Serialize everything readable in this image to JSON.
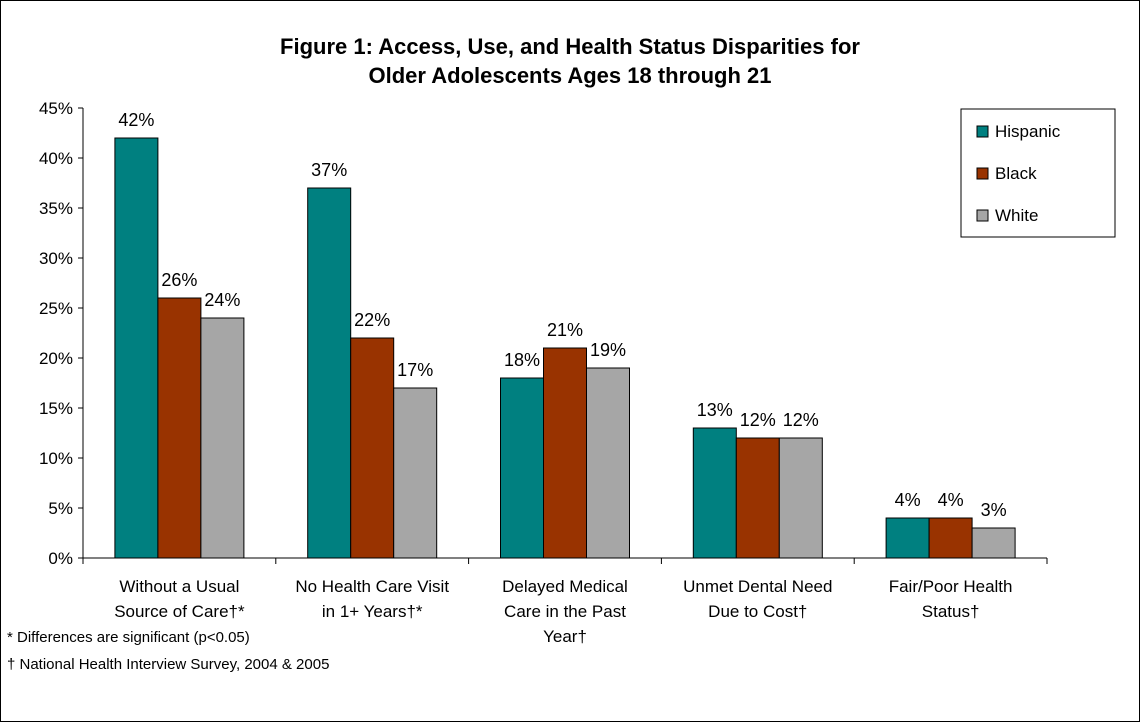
{
  "chart_data": {
    "type": "bar",
    "title_lines": [
      "Figure 1: Access, Use, and Health Status Disparities for",
      "Older Adolescents Ages 18 through 21"
    ],
    "categories": [
      [
        "Without a Usual",
        "Source of Care†*"
      ],
      [
        "No Health Care Visit",
        "in 1+ Years†*"
      ],
      [
        "Delayed Medical",
        "Care in the Past",
        "Year†"
      ],
      [
        "Unmet Dental Need",
        "Due to Cost†"
      ],
      [
        "Fair/Poor Health",
        "Status†"
      ]
    ],
    "series": [
      {
        "name": "Hispanic",
        "color": "#008080",
        "values": [
          42,
          37,
          18,
          13,
          4
        ]
      },
      {
        "name": "Black",
        "color": "#993300",
        "values": [
          26,
          22,
          21,
          12,
          4
        ]
      },
      {
        "name": "White",
        "color": "#A6A6A6",
        "values": [
          24,
          17,
          19,
          12,
          3
        ]
      }
    ],
    "data_labels": [
      [
        "42%",
        "37%",
        "18%",
        "13%",
        "4%"
      ],
      [
        "26%",
        "22%",
        "21%",
        "12%",
        "4%"
      ],
      [
        "24%",
        "17%",
        "19%",
        "12%",
        "3%"
      ]
    ],
    "ylim": [
      0,
      45
    ],
    "yticks": [
      0,
      5,
      10,
      15,
      20,
      25,
      30,
      35,
      40,
      45
    ],
    "ytick_labels": [
      "0%",
      "5%",
      "10%",
      "15%",
      "20%",
      "25%",
      "30%",
      "35%",
      "40%",
      "45%"
    ],
    "legend_placement": "top-right",
    "grid": false
  },
  "notes": {
    "significance": "* Differences are significant (p<0.05)",
    "source": "† National Health Interview Survey, 2004 & 2005"
  }
}
